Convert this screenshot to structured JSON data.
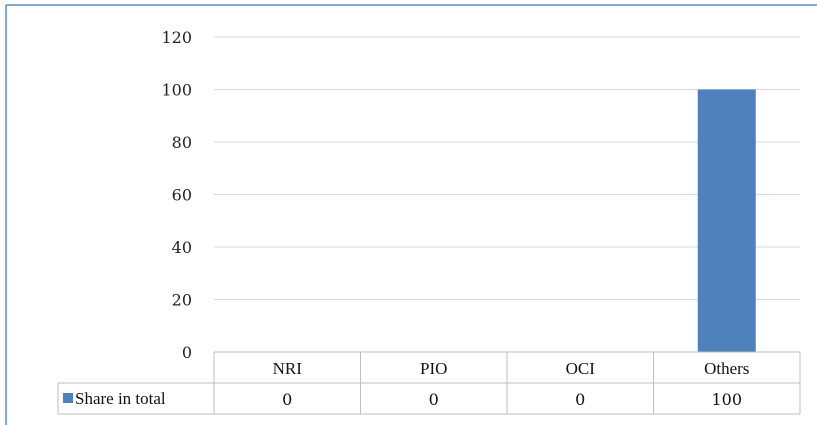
{
  "chart_data": {
    "type": "bar",
    "categories": [
      "NRI",
      "PIO",
      "OCI",
      "Others"
    ],
    "series": [
      {
        "name": "Share in total",
        "values": [
          0,
          0,
          0,
          100
        ],
        "color": "#4f81bd"
      }
    ],
    "ylim": [
      0,
      120
    ],
    "yticks": [
      "0",
      "20",
      "40",
      "60",
      "80",
      "100",
      "120"
    ],
    "grid": true,
    "legend": "data-table",
    "value_labels": [
      "0",
      "0",
      "0",
      "100"
    ]
  },
  "colors": {
    "frame": "#5b8ec9",
    "grid": "#d9d9d9",
    "table_lines": "#bfbfbf"
  }
}
